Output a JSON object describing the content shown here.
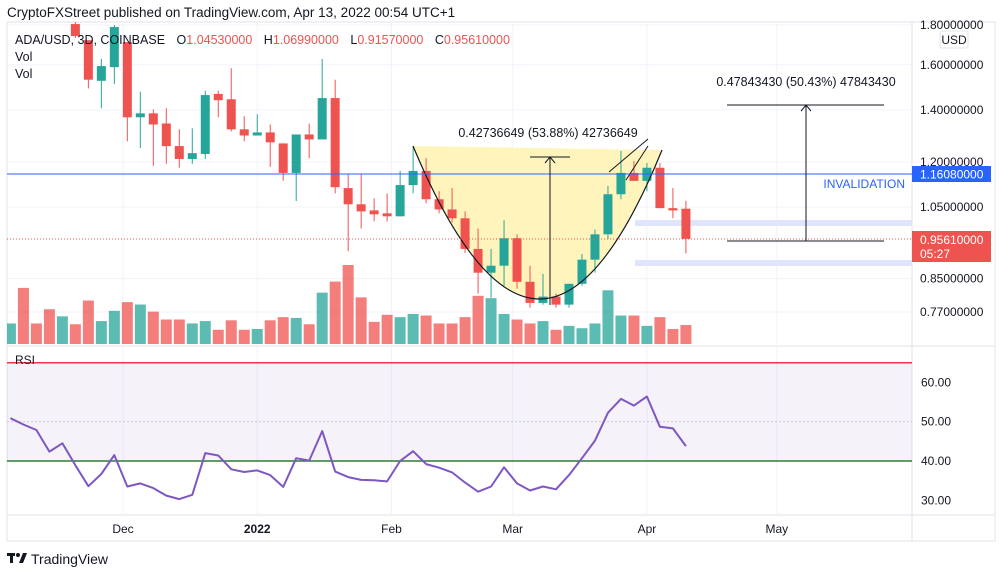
{
  "header": {
    "publisher_line": "CryptoFXStreet published on TradingView.com, Apr 13, 2022 00:54 UTC+1"
  },
  "legend": {
    "symbol": "ADA/USD, 3D, COINBASE",
    "o_label": "O",
    "o_value": "1.04530000",
    "h_label": "H",
    "h_value": "1.06990000",
    "l_label": "L",
    "l_value": "0.91570000",
    "c_label": "C",
    "c_value": "0.95610000",
    "vol1": "Vol",
    "vol2": "Vol"
  },
  "price_axis": {
    "currency": "USD",
    "ticks": [
      "1.80000000",
      "1.60000000",
      "1.40000000",
      "1.20000000",
      "1.05000000",
      "0.85000000",
      "0.77000000"
    ],
    "invalidation_price": "1.16080000",
    "last_price": "0.95610000",
    "countdown": "05:27"
  },
  "rsi_panel": {
    "title": "RSI",
    "ticks": [
      "60.00",
      "50.00",
      "40.00",
      "30.00"
    ],
    "upper_band": 65,
    "lower_band": 40,
    "mid": 50
  },
  "time_axis": {
    "labels": [
      {
        "text": "Dec",
        "date": "2021-12-01",
        "bold": false
      },
      {
        "text": "2022",
        "date": "2022-01-01",
        "bold": true
      },
      {
        "text": "Feb",
        "date": "2022-02-01",
        "bold": false
      },
      {
        "text": "Mar",
        "date": "2022-03-01",
        "bold": false
      },
      {
        "text": "Apr",
        "date": "2022-04-01",
        "bold": false
      },
      {
        "text": "May",
        "date": "2022-05-01",
        "bold": false
      }
    ]
  },
  "annotations": {
    "cup_measure": "0.42736649 (53.88%) 42736649",
    "target_measure": "0.47843430 (50.43%) 47843430",
    "invalidation": "INVALIDATION"
  },
  "footer": {
    "brand": "TradingView"
  },
  "colors": {
    "up": "#26a69a",
    "down": "#ef5350",
    "invalidation": "#2962ff",
    "rsi_line": "#7e57c2",
    "cup_fill": "#fff3b0",
    "zone": "#dfe6fb"
  },
  "chart_data": {
    "type": "candlestick",
    "symbol": "ADA/USD",
    "interval": "3D",
    "y_scale": "log",
    "ylim": [
      0.75,
      1.8
    ],
    "rsi_ylim": [
      25,
      70
    ],
    "candles": [
      {
        "date": "2021-11-05",
        "dir": "up",
        "vol": 26,
        "rsi": 50.9
      },
      {
        "date": "2021-11-08",
        "dir": "down",
        "vol": 71,
        "rsi": 49.3
      },
      {
        "date": "2021-11-11",
        "dir": "down",
        "vol": 26,
        "rsi": 47.9
      },
      {
        "date": "2021-11-14",
        "dir": "down",
        "vol": 44,
        "rsi": 42.4
      },
      {
        "date": "2021-11-17",
        "dir": "up",
        "vol": 35,
        "rsi": 44.5
      },
      {
        "date": "2021-11-20",
        "o": 1.805,
        "h": 1.827,
        "l": 1.732,
        "c": 1.742,
        "vol": 25,
        "rsi": 38.9
      },
      {
        "date": "2021-11-23",
        "o": 1.721,
        "h": 1.721,
        "l": 1.492,
        "c": 1.531,
        "vol": 55,
        "rsi": 33.6
      },
      {
        "date": "2021-11-26",
        "o": 1.526,
        "h": 1.628,
        "l": 1.407,
        "c": 1.594,
        "vol": 29,
        "rsi": 36.7
      },
      {
        "date": "2021-11-29",
        "o": 1.589,
        "h": 1.8,
        "l": 1.512,
        "c": 1.789,
        "vol": 42,
        "rsi": 41.5
      },
      {
        "date": "2021-12-02",
        "o": 1.711,
        "h": 1.711,
        "l": 1.276,
        "c": 1.37,
        "vol": 53,
        "rsi": 33.5
      },
      {
        "date": "2021-12-05",
        "o": 1.37,
        "h": 1.478,
        "l": 1.251,
        "c": 1.386,
        "vol": 50,
        "rsi": 34.3
      },
      {
        "date": "2021-12-08",
        "o": 1.386,
        "h": 1.402,
        "l": 1.187,
        "c": 1.341,
        "vol": 41,
        "rsi": 33.1
      },
      {
        "date": "2021-12-11",
        "o": 1.345,
        "h": 1.407,
        "l": 1.194,
        "c": 1.258,
        "vol": 31,
        "rsi": 31.2
      },
      {
        "date": "2021-12-14",
        "o": 1.258,
        "h": 1.322,
        "l": 1.18,
        "c": 1.211,
        "vol": 31,
        "rsi": 30.3
      },
      {
        "date": "2021-12-17",
        "o": 1.211,
        "h": 1.326,
        "l": 1.194,
        "c": 1.232,
        "vol": 26,
        "rsi": 31.4
      },
      {
        "date": "2021-12-20",
        "o": 1.229,
        "h": 1.482,
        "l": 1.211,
        "c": 1.463,
        "vol": 29,
        "rsi": 42.0
      },
      {
        "date": "2021-12-23",
        "o": 1.468,
        "h": 1.482,
        "l": 1.37,
        "c": 1.441,
        "vol": 18,
        "rsi": 41.4
      },
      {
        "date": "2021-12-26",
        "o": 1.445,
        "h": 1.584,
        "l": 1.314,
        "c": 1.322,
        "vol": 30,
        "rsi": 37.9
      },
      {
        "date": "2021-12-29",
        "o": 1.322,
        "h": 1.374,
        "l": 1.276,
        "c": 1.298,
        "vol": 18,
        "rsi": 37.2
      },
      {
        "date": "2022-01-01",
        "o": 1.298,
        "h": 1.382,
        "l": 1.298,
        "c": 1.31,
        "vol": 19,
        "rsi": 37.6
      },
      {
        "date": "2022-01-04",
        "o": 1.31,
        "h": 1.341,
        "l": 1.183,
        "c": 1.272,
        "vol": 30,
        "rsi": 36.4
      },
      {
        "date": "2022-01-07",
        "o": 1.268,
        "h": 1.268,
        "l": 1.135,
        "c": 1.162,
        "vol": 34,
        "rsi": 33.4
      },
      {
        "date": "2022-01-10",
        "o": 1.162,
        "h": 1.302,
        "l": 1.069,
        "c": 1.302,
        "vol": 33,
        "rsi": 40.7
      },
      {
        "date": "2022-01-13",
        "o": 1.302,
        "h": 1.345,
        "l": 1.214,
        "c": 1.283,
        "vol": 25,
        "rsi": 40.1
      },
      {
        "date": "2022-01-16",
        "o": 1.283,
        "h": 1.628,
        "l": 1.283,
        "c": 1.45,
        "vol": 65,
        "rsi": 47.6
      },
      {
        "date": "2022-01-19",
        "o": 1.45,
        "h": 1.531,
        "l": 1.094,
        "c": 1.114,
        "vol": 79,
        "rsi": 37.3
      },
      {
        "date": "2022-01-22",
        "o": 1.111,
        "h": 1.159,
        "l": 0.922,
        "c": 1.059,
        "vol": 100,
        "rsi": 35.9
      },
      {
        "date": "2022-01-25",
        "o": 1.059,
        "h": 1.159,
        "l": 0.986,
        "c": 1.037,
        "vol": 59,
        "rsi": 35.2
      },
      {
        "date": "2022-01-28",
        "o": 1.04,
        "h": 1.078,
        "l": 1.007,
        "c": 1.028,
        "vol": 28,
        "rsi": 35.1
      },
      {
        "date": "2022-01-31",
        "o": 1.031,
        "h": 1.094,
        "l": 1.007,
        "c": 1.022,
        "vol": 37,
        "rsi": 34.8
      },
      {
        "date": "2022-02-03",
        "o": 1.022,
        "h": 1.169,
        "l": 1.022,
        "c": 1.121,
        "vol": 34,
        "rsi": 40.0
      },
      {
        "date": "2022-02-06",
        "o": 1.121,
        "h": 1.254,
        "l": 1.094,
        "c": 1.169,
        "vol": 38,
        "rsi": 42.5
      },
      {
        "date": "2022-02-09",
        "o": 1.169,
        "h": 1.214,
        "l": 1.062,
        "c": 1.075,
        "vol": 36,
        "rsi": 39.2
      },
      {
        "date": "2022-02-12",
        "o": 1.075,
        "h": 1.101,
        "l": 1.031,
        "c": 1.043,
        "vol": 26,
        "rsi": 38.3
      },
      {
        "date": "2022-02-15",
        "o": 1.043,
        "h": 1.111,
        "l": 1.004,
        "c": 1.016,
        "vol": 26,
        "rsi": 37.1
      },
      {
        "date": "2022-02-18",
        "o": 1.016,
        "h": 1.037,
        "l": 0.917,
        "c": 0.928,
        "vol": 34,
        "rsi": 34.5
      },
      {
        "date": "2022-02-21",
        "o": 0.928,
        "h": 0.986,
        "l": 0.813,
        "c": 0.865,
        "vol": 61,
        "rsi": 32.2
      },
      {
        "date": "2022-02-24",
        "o": 0.865,
        "h": 0.928,
        "l": 0.803,
        "c": 0.883,
        "vol": 58,
        "rsi": 33.5
      },
      {
        "date": "2022-02-27",
        "o": 0.883,
        "h": 1.01,
        "l": 0.832,
        "c": 0.958,
        "vol": 38,
        "rsi": 38.4
      },
      {
        "date": "2022-03-02",
        "o": 0.958,
        "h": 0.969,
        "l": 0.825,
        "c": 0.842,
        "vol": 31,
        "rsi": 34.3
      },
      {
        "date": "2022-03-05",
        "o": 0.842,
        "h": 0.883,
        "l": 0.78,
        "c": 0.791,
        "vol": 26,
        "rsi": 32.5
      },
      {
        "date": "2022-03-08",
        "o": 0.791,
        "h": 0.862,
        "l": 0.787,
        "c": 0.806,
        "vol": 29,
        "rsi": 33.5
      },
      {
        "date": "2022-03-11",
        "o": 0.806,
        "h": 0.813,
        "l": 0.78,
        "c": 0.787,
        "vol": 18,
        "rsi": 32.8
      },
      {
        "date": "2022-03-14",
        "o": 0.787,
        "h": 0.837,
        "l": 0.78,
        "c": 0.837,
        "vol": 23,
        "rsi": 36.4
      },
      {
        "date": "2022-03-17",
        "o": 0.837,
        "h": 0.914,
        "l": 0.832,
        "c": 0.899,
        "vol": 20,
        "rsi": 40.7
      },
      {
        "date": "2022-03-20",
        "o": 0.899,
        "h": 0.983,
        "l": 0.865,
        "c": 0.969,
        "vol": 26,
        "rsi": 45.2
      },
      {
        "date": "2022-03-23",
        "o": 0.969,
        "h": 1.118,
        "l": 0.955,
        "c": 1.091,
        "vol": 68,
        "rsi": 52.3
      },
      {
        "date": "2022-03-26",
        "o": 1.091,
        "h": 1.24,
        "l": 1.075,
        "c": 1.162,
        "vol": 36,
        "rsi": 55.8
      },
      {
        "date": "2022-03-29",
        "o": 1.162,
        "h": 1.204,
        "l": 1.135,
        "c": 1.135,
        "vol": 36,
        "rsi": 54.1
      },
      {
        "date": "2022-04-01",
        "o": 1.135,
        "h": 1.197,
        "l": 1.101,
        "c": 1.18,
        "vol": 23,
        "rsi": 56.4
      },
      {
        "date": "2022-04-04",
        "o": 1.18,
        "h": 1.197,
        "l": 1.047,
        "c": 1.047,
        "vol": 34,
        "rsi": 48.7
      },
      {
        "date": "2022-04-07",
        "o": 1.047,
        "h": 1.111,
        "l": 1.016,
        "c": 1.04,
        "vol": 19,
        "rsi": 48.3
      },
      {
        "date": "2022-04-10",
        "o": 1.0453,
        "h": 1.0699,
        "l": 0.9157,
        "c": 0.9561,
        "vol": 24,
        "rsi": 43.8
      }
    ]
  }
}
